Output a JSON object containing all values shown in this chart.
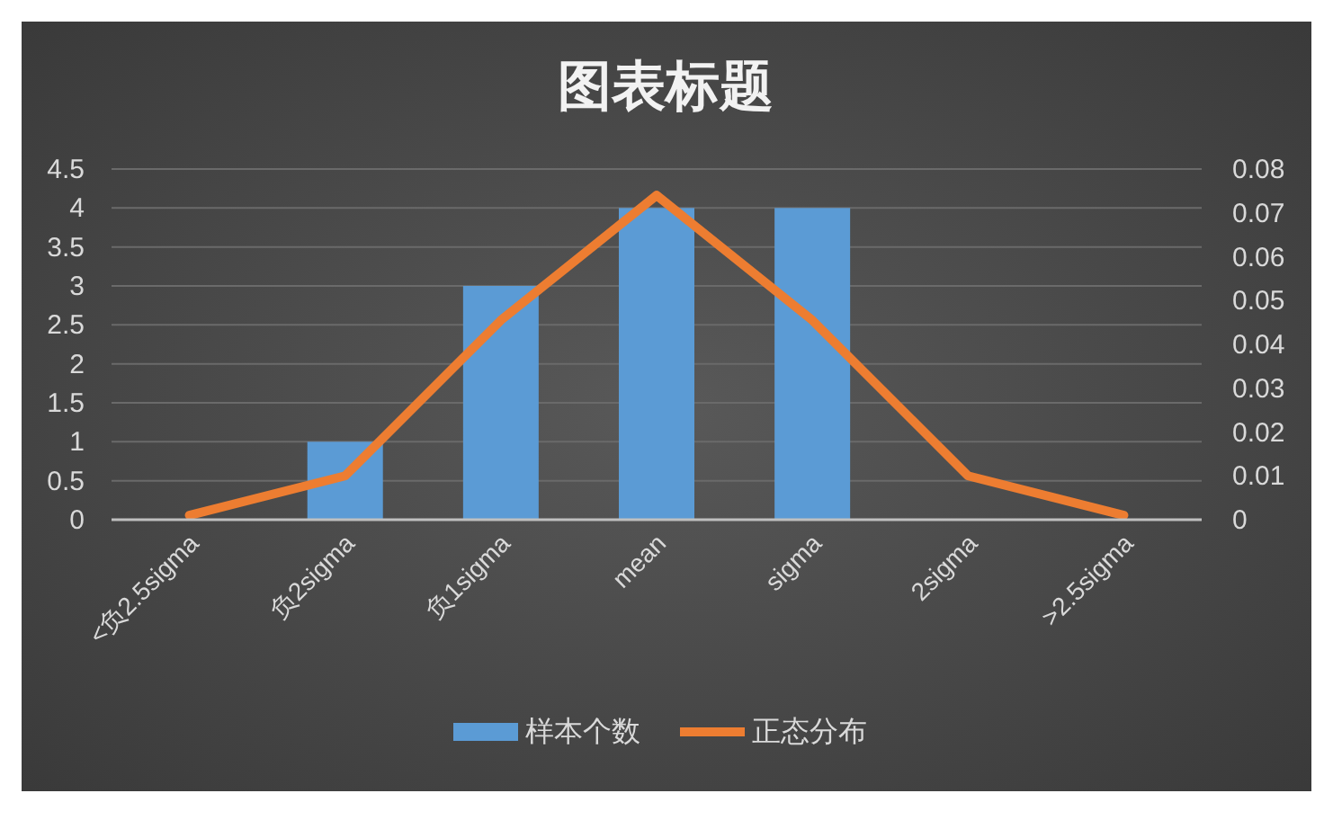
{
  "chart_data": {
    "type": "bar",
    "title": "图表标题",
    "categories": [
      "<负2.5sigma",
      "负2sigma",
      "负1sigma",
      "mean",
      "sigma",
      "2sigma",
      ">2.5sigma"
    ],
    "series": [
      {
        "name": "样本个数",
        "color": "#5b9bd5",
        "values": [
          0,
          1,
          3,
          4,
          4,
          0,
          0
        ]
      },
      {
        "name": "正态分布",
        "type": "line",
        "axis": "y2",
        "color": "#ed7d31",
        "values": [
          0.001,
          0.01,
          0.0455,
          0.074,
          0.0455,
          0.01,
          0.001
        ]
      }
    ],
    "ylim": [
      0,
      4.5
    ],
    "yticks": [
      0,
      0.5,
      1,
      1.5,
      2,
      2.5,
      3,
      3.5,
      4,
      4.5
    ],
    "y2lim": [
      0,
      0.08
    ],
    "y2ticks": [
      0,
      0.01,
      0.02,
      0.03,
      0.04,
      0.05,
      0.06,
      0.07,
      0.08
    ],
    "grid": "y",
    "legend": "bottom",
    "marker": "none",
    "line_style": "solid"
  }
}
